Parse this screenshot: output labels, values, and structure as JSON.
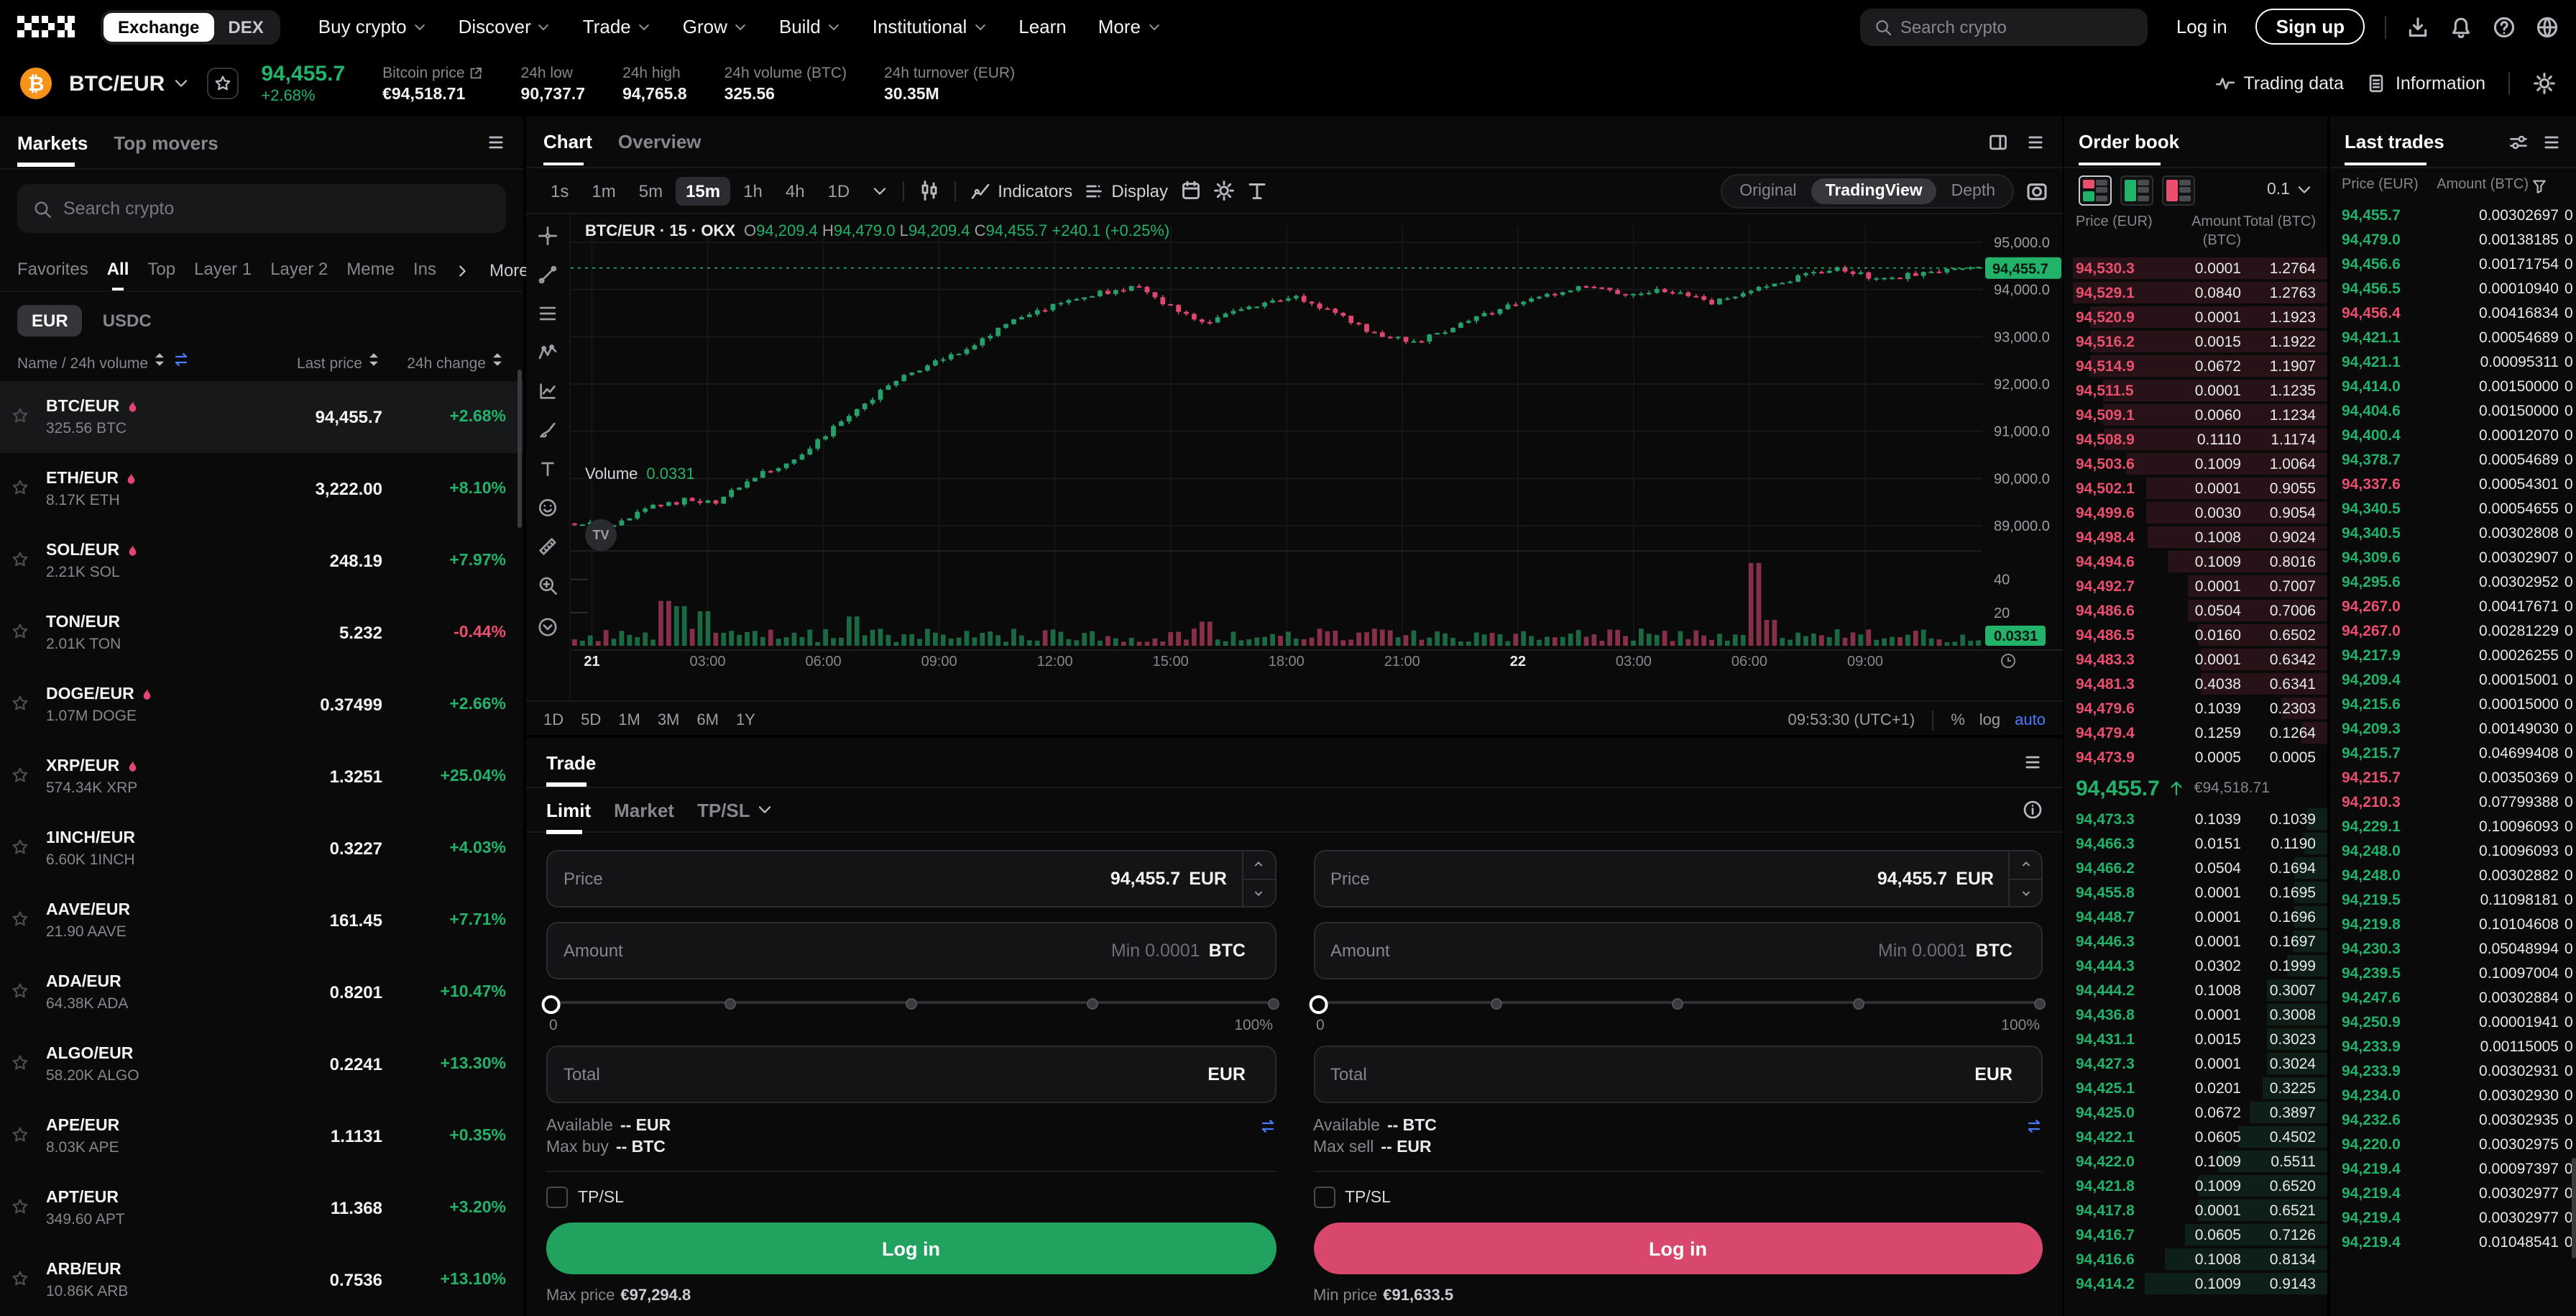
{
  "nav": {
    "logo": "OKX",
    "toggle": {
      "exchange": "Exchange",
      "dex": "DEX"
    },
    "items": [
      {
        "label": "Buy crypto",
        "caret": true
      },
      {
        "label": "Discover",
        "caret": true
      },
      {
        "label": "Trade",
        "caret": true
      },
      {
        "label": "Grow",
        "caret": true
      },
      {
        "label": "Build",
        "caret": true
      },
      {
        "label": "Institutional",
        "caret": true
      },
      {
        "label": "Learn",
        "caret": false
      },
      {
        "label": "More",
        "caret": true
      }
    ],
    "search_placeholder": "Search crypto",
    "login": "Log in",
    "signup": "Sign up"
  },
  "ticker": {
    "pair": "BTC/EUR",
    "price": "94,455.7",
    "change": "+2.68%",
    "stats": [
      {
        "label": "Bitcoin price",
        "value": "€94,518.71",
        "external": true
      },
      {
        "label": "24h low",
        "value": "90,737.7"
      },
      {
        "label": "24h high",
        "value": "94,765.8"
      },
      {
        "label": "24h volume (BTC)",
        "value": "325.56"
      },
      {
        "label": "24h turnover (EUR)",
        "value": "30.35M"
      }
    ],
    "trading_data": "Trading data",
    "information": "Information"
  },
  "sidebar": {
    "tabs": [
      "Markets",
      "Top movers"
    ],
    "active_tab": "Markets",
    "search_placeholder": "Search crypto",
    "filters": [
      "Favorites",
      "All",
      "Top",
      "Layer 1",
      "Layer 2",
      "Meme",
      "Ins"
    ],
    "active_filter": "All",
    "more_label": "More",
    "quotes": [
      "EUR",
      "USDC"
    ],
    "active_quote": "EUR",
    "columns": [
      "Name / 24h volume",
      "Last price",
      "24h change"
    ],
    "rows": [
      {
        "pair": "BTC/EUR",
        "hot": true,
        "volume": "325.56 BTC",
        "price": "94,455.7",
        "change": "+2.68%",
        "up": true,
        "selected": true
      },
      {
        "pair": "ETH/EUR",
        "hot": true,
        "volume": "8.17K ETH",
        "price": "3,222.00",
        "change": "+8.10%",
        "up": true
      },
      {
        "pair": "SOL/EUR",
        "hot": true,
        "volume": "2.21K SOL",
        "price": "248.19",
        "change": "+7.97%",
        "up": true
      },
      {
        "pair": "TON/EUR",
        "hot": false,
        "volume": "2.01K TON",
        "price": "5.232",
        "change": "-0.44%",
        "up": false
      },
      {
        "pair": "DOGE/EUR",
        "hot": true,
        "volume": "1.07M DOGE",
        "price": "0.37499",
        "change": "+2.66%",
        "up": true
      },
      {
        "pair": "XRP/EUR",
        "hot": true,
        "volume": "574.34K XRP",
        "price": "1.3251",
        "change": "+25.04%",
        "up": true
      },
      {
        "pair": "1INCH/EUR",
        "hot": false,
        "volume": "6.60K 1INCH",
        "price": "0.3227",
        "change": "+4.03%",
        "up": true
      },
      {
        "pair": "AAVE/EUR",
        "hot": false,
        "volume": "21.90 AAVE",
        "price": "161.45",
        "change": "+7.71%",
        "up": true
      },
      {
        "pair": "ADA/EUR",
        "hot": false,
        "volume": "64.38K ADA",
        "price": "0.8201",
        "change": "+10.47%",
        "up": true
      },
      {
        "pair": "ALGO/EUR",
        "hot": false,
        "volume": "58.20K ALGO",
        "price": "0.2241",
        "change": "+13.30%",
        "up": true
      },
      {
        "pair": "APE/EUR",
        "hot": false,
        "volume": "8.03K APE",
        "price": "1.1131",
        "change": "+0.35%",
        "up": true
      },
      {
        "pair": "APT/EUR",
        "hot": false,
        "volume": "349.60 APT",
        "price": "11.368",
        "change": "+3.20%",
        "up": true
      },
      {
        "pair": "ARB/EUR",
        "hot": false,
        "volume": "10.86K ARB",
        "price": "0.7536",
        "change": "+13.10%",
        "up": true
      }
    ]
  },
  "chart": {
    "tabs": [
      "Chart",
      "Overview"
    ],
    "active_tab": "Chart",
    "timeframes": [
      "1s",
      "1m",
      "5m",
      "15m",
      "1h",
      "4h",
      "1D"
    ],
    "active_timeframe": "15m",
    "indicators_label": "Indicators",
    "display_label": "Display",
    "view_modes": [
      "Original",
      "TradingView",
      "Depth"
    ],
    "active_view": "TradingView",
    "tools": [
      "crosshair",
      "trend-line",
      "fib-retracement",
      "xabcd-pattern",
      "forecast",
      "brush",
      "text-tool",
      "emoji",
      "ruler",
      "zoom-in"
    ],
    "ranges": [
      "1D",
      "5D",
      "1M",
      "3M",
      "6M",
      "1Y"
    ],
    "clock": "09:53:30 (UTC+1)",
    "scale_pct": "%",
    "scale_log": "log",
    "scale_auto": "auto"
  },
  "chart_data": {
    "type": "candlestick",
    "title": "BTC/EUR · 15 · OKX",
    "legend": [
      [
        "O",
        "94,209.4"
      ],
      [
        "H",
        "94,479.0"
      ],
      [
        "L",
        "94,209.4"
      ],
      [
        "C",
        "94,455.7"
      ]
    ],
    "legend_change": "+240.1 (+0.25%)",
    "x_ticks": [
      "21",
      "03:00",
      "06:00",
      "09:00",
      "12:00",
      "15:00",
      "18:00",
      "21:00",
      "22",
      "03:00",
      "06:00",
      "09:00"
    ],
    "x_tick_major": [
      true,
      false,
      false,
      false,
      false,
      false,
      false,
      false,
      true,
      false,
      false,
      false
    ],
    "y_ticks": [
      95000,
      94000,
      93000,
      92000,
      91000,
      90000,
      89000
    ],
    "y_range": [
      88650,
      95350
    ],
    "volume_ticks": [
      40,
      20
    ],
    "volume_scale_max": 52,
    "volume_label": "Volume",
    "volume_value": "0.0331",
    "last_price": 94455.7,
    "last_price_label": "94,455.7",
    "volume_tag": "0.0331",
    "candle_count": 180,
    "grid": true,
    "trend": [
      [
        0,
        89050
      ],
      [
        0.03,
        89000
      ],
      [
        0.05,
        89350
      ],
      [
        0.08,
        89550
      ],
      [
        0.1,
        89500
      ],
      [
        0.13,
        90050
      ],
      [
        0.16,
        90450
      ],
      [
        0.19,
        91200
      ],
      [
        0.22,
        91900
      ],
      [
        0.25,
        92400
      ],
      [
        0.28,
        92750
      ],
      [
        0.31,
        93300
      ],
      [
        0.34,
        93650
      ],
      [
        0.37,
        93900
      ],
      [
        0.4,
        94050
      ],
      [
        0.42,
        93700
      ],
      [
        0.45,
        93300
      ],
      [
        0.48,
        93650
      ],
      [
        0.51,
        93850
      ],
      [
        0.54,
        93550
      ],
      [
        0.57,
        93050
      ],
      [
        0.6,
        92900
      ],
      [
        0.63,
        93250
      ],
      [
        0.66,
        93600
      ],
      [
        0.69,
        93850
      ],
      [
        0.72,
        94050
      ],
      [
        0.75,
        93900
      ],
      [
        0.78,
        94000
      ],
      [
        0.81,
        93700
      ],
      [
        0.84,
        94000
      ],
      [
        0.87,
        94250
      ],
      [
        0.9,
        94450
      ],
      [
        0.93,
        94200
      ],
      [
        0.96,
        94350
      ],
      [
        1,
        94455
      ]
    ],
    "volume_spikes": [
      [
        0.065,
        0.52,
        "down"
      ],
      [
        0.075,
        0.46,
        "up"
      ],
      [
        0.09,
        0.4,
        "up"
      ],
      [
        0.2,
        0.34,
        "up"
      ],
      [
        0.45,
        0.28,
        "down"
      ],
      [
        0.84,
        0.96,
        "down"
      ],
      [
        0.85,
        0.3,
        "down"
      ]
    ]
  },
  "trade": {
    "title": "Trade",
    "tabs": [
      "Limit",
      "Market",
      "TP/SL"
    ],
    "active_tab": "Limit",
    "sides": [
      {
        "side": "buy",
        "price_label": "Price",
        "price": "94,455.7",
        "price_unit": "EUR",
        "amount_label": "Amount",
        "amount_placeholder": "Min 0.0001",
        "amount_unit": "BTC",
        "slider_min": "0",
        "slider_max": "100%",
        "total_label": "Total",
        "total_unit": "EUR",
        "available_label": "Available",
        "available": "-- EUR",
        "max_label": "Max buy",
        "max": "-- BTC",
        "tpsl_label": "TP/SL",
        "button": "Log in",
        "limit_label": "Max price",
        "limit_value": "€97,294.8"
      },
      {
        "side": "sell",
        "price_label": "Price",
        "price": "94,455.7",
        "price_unit": "EUR",
        "amount_label": "Amount",
        "amount_placeholder": "Min 0.0001",
        "amount_unit": "BTC",
        "slider_min": "0",
        "slider_max": "100%",
        "total_label": "Total",
        "total_unit": "EUR",
        "available_label": "Available",
        "available": "-- BTC",
        "max_label": "Max sell",
        "max": "-- EUR",
        "tpsl_label": "TP/SL",
        "button": "Log in",
        "limit_label": "Min price",
        "limit_value": "€91,633.5"
      }
    ]
  },
  "order_book": {
    "title": "Order book",
    "precision": "0.1",
    "columns": [
      "Price (EUR)",
      "Amount (BTC)",
      "Total (BTC)"
    ],
    "asks": [
      [
        "94,530.3",
        "0.0001",
        "1.2764"
      ],
      [
        "94,529.1",
        "0.0840",
        "1.2763"
      ],
      [
        "94,520.9",
        "0.0001",
        "1.1923"
      ],
      [
        "94,516.2",
        "0.0015",
        "1.1922"
      ],
      [
        "94,514.9",
        "0.0672",
        "1.1907"
      ],
      [
        "94,511.5",
        "0.0001",
        "1.1235"
      ],
      [
        "94,509.1",
        "0.0060",
        "1.1234"
      ],
      [
        "94,508.9",
        "0.1110",
        "1.1174"
      ],
      [
        "94,503.6",
        "0.1009",
        "1.0064"
      ],
      [
        "94,502.1",
        "0.0001",
        "0.9055"
      ],
      [
        "94,499.6",
        "0.0030",
        "0.9054"
      ],
      [
        "94,498.4",
        "0.1008",
        "0.9024"
      ],
      [
        "94,494.6",
        "0.1009",
        "0.8016"
      ],
      [
        "94,492.7",
        "0.0001",
        "0.7007"
      ],
      [
        "94,486.6",
        "0.0504",
        "0.7006"
      ],
      [
        "94,486.5",
        "0.0160",
        "0.6502"
      ],
      [
        "94,483.3",
        "0.0001",
        "0.6342"
      ],
      [
        "94,481.3",
        "0.4038",
        "0.6341"
      ],
      [
        "94,479.6",
        "0.1039",
        "0.2303"
      ],
      [
        "94,479.4",
        "0.1259",
        "0.1264"
      ],
      [
        "94,473.9",
        "0.0005",
        "0.0005"
      ]
    ],
    "spread": {
      "price": "94,455.7",
      "fiat": "€94,518.71"
    },
    "bids": [
      [
        "94,473.3",
        "0.1039",
        "0.1039"
      ],
      [
        "94,466.3",
        "0.0151",
        "0.1190"
      ],
      [
        "94,466.2",
        "0.0504",
        "0.1694"
      ],
      [
        "94,455.8",
        "0.0001",
        "0.1695"
      ],
      [
        "94,448.7",
        "0.0001",
        "0.1696"
      ],
      [
        "94,446.3",
        "0.0001",
        "0.1697"
      ],
      [
        "94,444.3",
        "0.0302",
        "0.1999"
      ],
      [
        "94,444.2",
        "0.1008",
        "0.3007"
      ],
      [
        "94,436.8",
        "0.0001",
        "0.3008"
      ],
      [
        "94,431.1",
        "0.0015",
        "0.3023"
      ],
      [
        "94,427.3",
        "0.0001",
        "0.3024"
      ],
      [
        "94,425.1",
        "0.0201",
        "0.3225"
      ],
      [
        "94,425.0",
        "0.0672",
        "0.3897"
      ],
      [
        "94,422.1",
        "0.0605",
        "0.4502"
      ],
      [
        "94,422.0",
        "0.1009",
        "0.5511"
      ],
      [
        "94,421.8",
        "0.1009",
        "0.6520"
      ],
      [
        "94,417.8",
        "0.0001",
        "0.6521"
      ],
      [
        "94,416.7",
        "0.0605",
        "0.7126"
      ],
      [
        "94,416.6",
        "0.1008",
        "0.8134"
      ],
      [
        "94,414.2",
        "0.1009",
        "0.9143"
      ]
    ]
  },
  "last_trades": {
    "title": "Last trades",
    "columns": [
      "Price (EUR)",
      "Amount (BTC)"
    ],
    "time_prefix": "0",
    "rows": [
      [
        "94,455.7",
        "0.00302697",
        "up"
      ],
      [
        "94,479.0",
        "0.00138185",
        "up"
      ],
      [
        "94,456.6",
        "0.00171754",
        "up"
      ],
      [
        "94,456.5",
        "0.00010940",
        "up"
      ],
      [
        "94,456.4",
        "0.00416834",
        "down"
      ],
      [
        "94,421.1",
        "0.00054689",
        "up"
      ],
      [
        "94,421.1",
        "0.00095311",
        "up"
      ],
      [
        "94,414.0",
        "0.00150000",
        "up"
      ],
      [
        "94,404.6",
        "0.00150000",
        "up"
      ],
      [
        "94,400.4",
        "0.00012070",
        "up"
      ],
      [
        "94,378.7",
        "0.00054689",
        "up"
      ],
      [
        "94,337.6",
        "0.00054301",
        "down"
      ],
      [
        "94,340.5",
        "0.00054655",
        "up"
      ],
      [
        "94,340.5",
        "0.00302808",
        "up"
      ],
      [
        "94,309.6",
        "0.00302907",
        "up"
      ],
      [
        "94,295.6",
        "0.00302952",
        "up"
      ],
      [
        "94,267.0",
        "0.00417671",
        "down"
      ],
      [
        "94,267.0",
        "0.00281229",
        "down"
      ],
      [
        "94,217.9",
        "0.00026255",
        "up"
      ],
      [
        "94,209.4",
        "0.00015001",
        "up"
      ],
      [
        "94,215.6",
        "0.00015000",
        "up"
      ],
      [
        "94,209.3",
        "0.00149030",
        "up"
      ],
      [
        "94,215.7",
        "0.04699408",
        "up"
      ],
      [
        "94,215.7",
        "0.00350369",
        "down"
      ],
      [
        "94,210.3",
        "0.07799388",
        "down"
      ],
      [
        "94,229.1",
        "0.10096093",
        "up"
      ],
      [
        "94,248.0",
        "0.10096093",
        "up"
      ],
      [
        "94,248.0",
        "0.00302882",
        "up"
      ],
      [
        "94,219.5",
        "0.11098181",
        "up"
      ],
      [
        "94,219.8",
        "0.10104608",
        "up"
      ],
      [
        "94,230.3",
        "0.05048994",
        "up"
      ],
      [
        "94,239.5",
        "0.10097004",
        "up"
      ],
      [
        "94,247.6",
        "0.00302884",
        "up"
      ],
      [
        "94,250.9",
        "0.00001941",
        "up"
      ],
      [
        "94,233.9",
        "0.00115005",
        "up"
      ],
      [
        "94,233.9",
        "0.00302931",
        "up"
      ],
      [
        "94,234.0",
        "0.00302930",
        "up"
      ],
      [
        "94,232.6",
        "0.00302935",
        "up"
      ],
      [
        "94,220.0",
        "0.00302975",
        "up"
      ],
      [
        "94,219.4",
        "0.00097397",
        "up"
      ],
      [
        "94,219.4",
        "0.00302977",
        "up"
      ],
      [
        "94,219.4",
        "0.00302977",
        "up"
      ],
      [
        "94,219.4",
        "0.01048541",
        "up"
      ]
    ]
  },
  "colors": {
    "green": "#23b26a",
    "red": "#ea4f6e",
    "blue": "#4a7bff",
    "buy_button": "#21a35f",
    "sell_button": "#d8486c",
    "candle_up": "#26a06a",
    "candle_down": "#e0476f",
    "brand_orange": "#f7931a"
  }
}
